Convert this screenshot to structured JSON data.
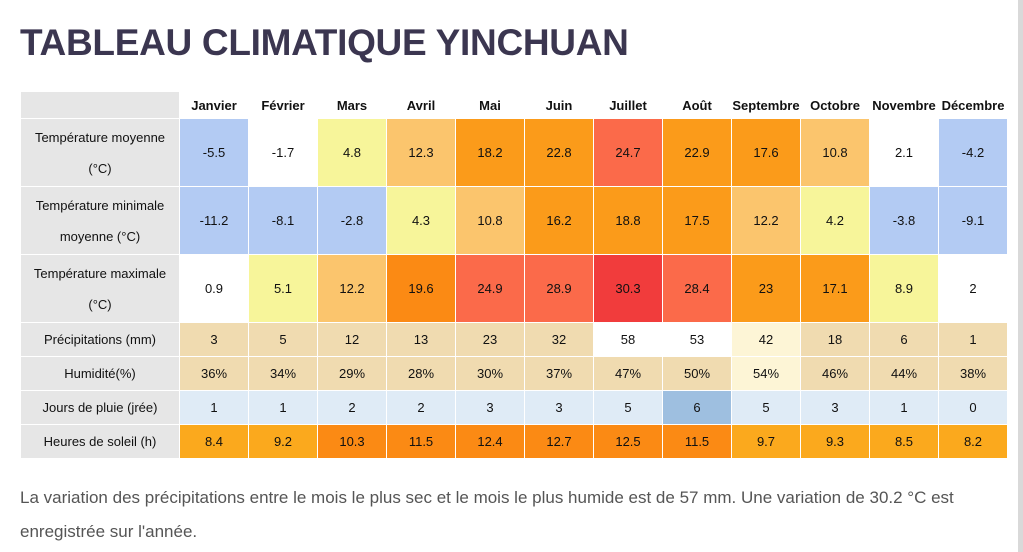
{
  "title": "TABLEAU CLIMATIQUE YINCHUAN",
  "months": [
    "Janvier",
    "Février",
    "Mars",
    "Avril",
    "Mai",
    "Juin",
    "Juillet",
    "Août",
    "Septembre",
    "Octobre",
    "Novembre",
    "Décembre"
  ],
  "rows": [
    {
      "label": "Température moyenne (°C)",
      "values": [
        "-5.5",
        "-1.7",
        "4.8",
        "12.3",
        "18.2",
        "22.8",
        "24.7",
        "22.9",
        "17.6",
        "10.8",
        "2.1",
        "-4.2"
      ],
      "colors": [
        "#b3cbf3",
        "#ffffff",
        "#f7f59a",
        "#fbc56d",
        "#fb9b1a",
        "#fb9b1a",
        "#fb6a4a",
        "#fb9b1a",
        "#fb9b1a",
        "#fbc56d",
        "#ffffff",
        "#b3cbf3"
      ]
    },
    {
      "label": "Température minimale moyenne (°C)",
      "values": [
        "-11.2",
        "-8.1",
        "-2.8",
        "4.3",
        "10.8",
        "16.2",
        "18.8",
        "17.5",
        "12.2",
        "4.2",
        "-3.8",
        "-9.1"
      ],
      "colors": [
        "#b3cbf3",
        "#b3cbf3",
        "#b3cbf3",
        "#f7f59a",
        "#fbc56d",
        "#fb9b1a",
        "#fb9b1a",
        "#fb9b1a",
        "#fbc56d",
        "#f7f59a",
        "#b3cbf3",
        "#b3cbf3"
      ]
    },
    {
      "label": "Température maximale (°C)",
      "values": [
        "0.9",
        "5.1",
        "12.2",
        "19.6",
        "24.9",
        "28.9",
        "30.3",
        "28.4",
        "23",
        "17.1",
        "8.9",
        "2"
      ],
      "colors": [
        "#ffffff",
        "#f7f59a",
        "#fbc56d",
        "#fb8a14",
        "#fb6a4a",
        "#fb6a4a",
        "#f13c3c",
        "#fb6a4a",
        "#fb9b1a",
        "#fb9b1a",
        "#f7f59a",
        "#ffffff"
      ]
    },
    {
      "label": "Précipitations (mm)",
      "values": [
        "3",
        "5",
        "12",
        "13",
        "23",
        "32",
        "58",
        "53",
        "42",
        "18",
        "6",
        "1"
      ],
      "colors": [
        "#f0dbb0",
        "#f0dbb0",
        "#f0dbb0",
        "#f0dbb0",
        "#f0dbb0",
        "#f0dbb0",
        "#ffffff",
        "#ffffff",
        "#fdf5d6",
        "#f0dbb0",
        "#f0dbb0",
        "#f0dbb0"
      ]
    },
    {
      "label": "Humidité(%)",
      "values": [
        "36%",
        "34%",
        "29%",
        "28%",
        "30%",
        "37%",
        "47%",
        "50%",
        "54%",
        "46%",
        "44%",
        "38%"
      ],
      "colors": [
        "#f0dbb0",
        "#f0dbb0",
        "#f0dbb0",
        "#f0dbb0",
        "#f0dbb0",
        "#f0dbb0",
        "#f0dbb0",
        "#f0dbb0",
        "#fdf5d6",
        "#f0dbb0",
        "#f0dbb0",
        "#f0dbb0"
      ]
    },
    {
      "label": "Jours de pluie (jrée)",
      "values": [
        "1",
        "1",
        "2",
        "2",
        "3",
        "3",
        "5",
        "6",
        "5",
        "3",
        "1",
        "0"
      ],
      "colors": [
        "#dfebf6",
        "#dfebf6",
        "#dfebf6",
        "#dfebf6",
        "#dfebf6",
        "#dfebf6",
        "#dfebf6",
        "#9ebfe0",
        "#dfebf6",
        "#dfebf6",
        "#dfebf6",
        "#dfebf6"
      ]
    },
    {
      "label": "Heures de soleil (h)",
      "values": [
        "8.4",
        "9.2",
        "10.3",
        "11.5",
        "12.4",
        "12.7",
        "12.5",
        "11.5",
        "9.7",
        "9.3",
        "8.5",
        "8.2"
      ],
      "colors": [
        "#fba91d",
        "#fba91d",
        "#fb8a14",
        "#fb8a14",
        "#fb8a14",
        "#fb8a14",
        "#fb8a14",
        "#fb8a14",
        "#fba91d",
        "#fba91d",
        "#fba91d",
        "#fba91d"
      ]
    }
  ],
  "summary": "La variation des précipitations entre le mois le plus sec et le mois le plus humide est de 57 mm. Une variation de 30.2 °C est enregistrée sur l'année."
}
